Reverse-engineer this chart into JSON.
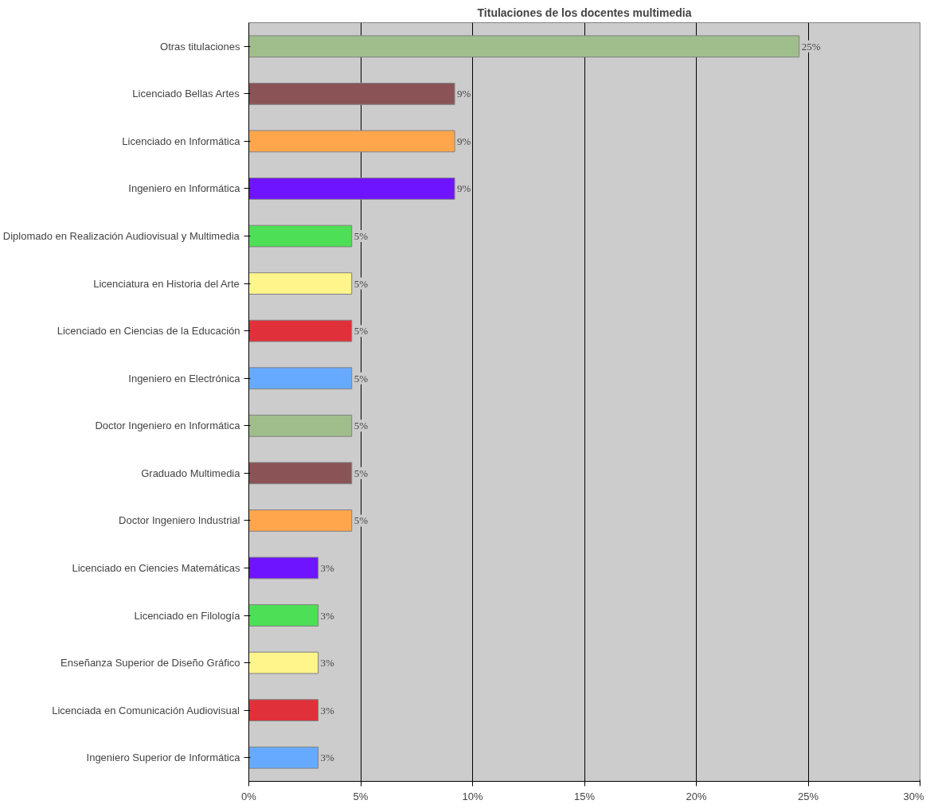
{
  "chart_data": {
    "type": "bar",
    "orientation": "horizontal",
    "title": "Titulaciones de los docentes multimedia",
    "categories": [
      "Otras titulaciones",
      "Licenciado Bellas Artes",
      "Licenciado en Informática",
      "Ingeniero en Informática",
      "Diplomado en Realización Audiovisual y Multimedia",
      "Licenciatura en Historia del Arte",
      "Licenciado en Ciencias de la Educación",
      "Ingeniero en Electrónica",
      "Doctor Ingeniero en Informática",
      "Graduado Multimedia",
      "Doctor Ingeniero Industrial",
      "Licenciado en Ciencies Matemáticas",
      "Licenciado en Filología",
      "Enseñanza Superior de Diseño Gráfico",
      "Licenciada en Comunicación Audiovisual",
      "Ingeniero Superior de Informática"
    ],
    "values": [
      24.6,
      9.2,
      9.2,
      9.2,
      4.6,
      4.6,
      4.6,
      4.6,
      4.6,
      4.6,
      4.6,
      3.1,
      3.1,
      3.1,
      3.1,
      3.1
    ],
    "value_labels": [
      "25%",
      "9%",
      "9%",
      "9%",
      "5%",
      "5%",
      "5%",
      "5%",
      "5%",
      "5%",
      "5%",
      "3%",
      "3%",
      "3%",
      "3%",
      "3%"
    ],
    "colors": [
      "#9fbe8c",
      "#8a5457",
      "#ffa64d",
      "#6f14ff",
      "#4ddf55",
      "#fff58a",
      "#e0313a",
      "#66aaff",
      "#9fbe8c",
      "#8a5457",
      "#ffa64d",
      "#6f14ff",
      "#4ddf55",
      "#fff58a",
      "#e0313a",
      "#66aaff"
    ],
    "xlim": [
      0,
      30
    ],
    "xticks": [
      {
        "value": 0,
        "label": "0%"
      },
      {
        "value": 5,
        "label": "5%"
      },
      {
        "value": 10,
        "label": "10%"
      },
      {
        "value": 15,
        "label": "15%"
      },
      {
        "value": 20,
        "label": "20%"
      },
      {
        "value": 25,
        "label": "25%"
      },
      {
        "value": 30,
        "label": "30%"
      }
    ],
    "grid": "x"
  }
}
